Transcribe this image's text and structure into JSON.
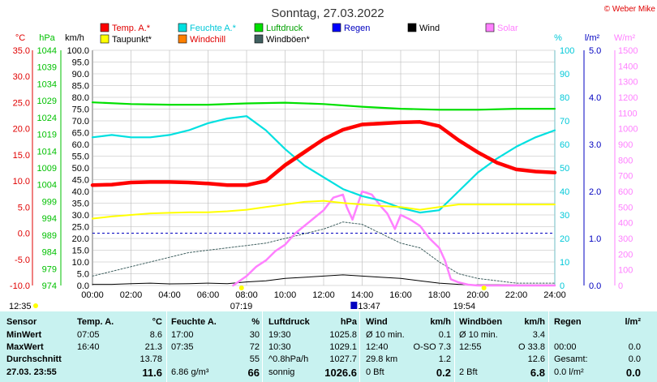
{
  "chart_data": {
    "type": "line",
    "title": "Sonntag, 27.03.2022",
    "credit": "© Weber Mike",
    "x_ticks": [
      "00:00",
      "02:00",
      "04:00",
      "06:00",
      "08:00",
      "10:00",
      "12:00",
      "14:00",
      "16:00",
      "18:00",
      "20:00",
      "22:00",
      "24:00"
    ],
    "axes": {
      "temp": {
        "unit": "°C",
        "range": [
          -10,
          35
        ],
        "ticks": [
          "35.0",
          "30.0",
          "25.0",
          "20.0",
          "15.0",
          "10.0",
          "5.0",
          "0.0",
          "-5.0",
          "-10.0"
        ],
        "color": "#e00000"
      },
      "hpa": {
        "unit": "hPa",
        "range": [
          974,
          1044
        ],
        "ticks": [
          "1044",
          "1039",
          "1034",
          "1029",
          "1024",
          "1019",
          "1014",
          "1009",
          "1004",
          "999",
          "994",
          "989",
          "984",
          "979",
          "974"
        ],
        "color": "#00c000"
      },
      "kmh": {
        "unit": "km/h",
        "range": [
          0,
          100
        ],
        "ticks": [
          "100.0",
          "95.0",
          "90.0",
          "85.0",
          "80.0",
          "75.0",
          "70.0",
          "65.0",
          "60.0",
          "55.0",
          "50.0",
          "45.0",
          "40.0",
          "35.0",
          "30.0",
          "25.0",
          "20.0",
          "15.0",
          "10.0",
          "5.0",
          "0.0"
        ],
        "color": "#000000"
      },
      "pct": {
        "unit": "%",
        "range": [
          0,
          100
        ],
        "ticks": [
          "100",
          "90",
          "80",
          "70",
          "60",
          "50",
          "40",
          "30",
          "20",
          "10",
          "0"
        ],
        "color": "#00c8d8"
      },
      "lm2": {
        "unit": "l/m²",
        "range": [
          0,
          5
        ],
        "ticks": [
          "5.0",
          "4.0",
          "3.0",
          "2.0",
          "1.0",
          "0.0"
        ],
        "color": "#0000c0"
      },
      "wm2": {
        "unit": "W/m²",
        "range": [
          0,
          1500
        ],
        "ticks": [
          "1500",
          "1400",
          "1300",
          "1200",
          "1100",
          "1000",
          "900",
          "800",
          "700",
          "600",
          "500",
          "400",
          "300",
          "200",
          "100",
          "0"
        ],
        "color": "#ff80ff"
      }
    },
    "legend": [
      {
        "label": "Temp. A.*",
        "color": "#ff0000"
      },
      {
        "label": "Feuchte A.*",
        "color": "#00e0e0"
      },
      {
        "label": "Luftdruck",
        "color": "#00e000"
      },
      {
        "label": "Regen",
        "color": "#0000ff"
      },
      {
        "label": "Wind",
        "color": "#000000"
      },
      {
        "label": "Solar",
        "color": "#ff80ff"
      },
      {
        "label": "Taupunkt*",
        "color": "#ffff00"
      },
      {
        "label": "Windchill",
        "color": "#ff8000"
      },
      {
        "label": "Windböen*",
        "color": "#406060"
      }
    ],
    "markers": {
      "sunrise": "07:19",
      "noon": "13:47",
      "sunset": "19:54",
      "now": "12:35"
    },
    "series": [
      {
        "name": "Temp. A.*",
        "axis": "temp",
        "color": "#ff0000",
        "x": [
          0,
          1,
          2,
          3,
          4,
          5,
          6,
          7,
          8,
          9,
          10,
          11,
          12,
          13,
          14,
          15,
          16,
          17,
          18,
          19,
          20,
          21,
          22,
          23,
          24
        ],
        "y": [
          9.2,
          9.3,
          9.7,
          9.8,
          9.8,
          9.7,
          9.5,
          9.2,
          9.2,
          10.0,
          13.0,
          15.5,
          18.0,
          19.8,
          20.8,
          21.0,
          21.2,
          21.3,
          20.5,
          17.8,
          15.5,
          13.5,
          12.2,
          11.8,
          11.6
        ]
      },
      {
        "name": "Windchill",
        "axis": "temp",
        "color": "#ff8000",
        "x": [
          0,
          2,
          4,
          6,
          8,
          9,
          10,
          11,
          12,
          13,
          14,
          15,
          16,
          17,
          18,
          19,
          20,
          21,
          22,
          23,
          24
        ],
        "y": [
          9.2,
          9.7,
          9.7,
          9.4,
          9.1,
          10.2,
          13.3,
          15.8,
          18.2,
          20.0,
          21.0,
          21.2,
          21.3,
          21.3,
          20.3,
          17.6,
          15.3,
          13.3,
          12.1,
          11.7,
          11.6
        ]
      },
      {
        "name": "Taupunkt*",
        "axis": "temp",
        "color": "#ffff00",
        "x": [
          0,
          1,
          2,
          3,
          4,
          5,
          6,
          7,
          8,
          9,
          10,
          11,
          12,
          13,
          14,
          15,
          16,
          17,
          18,
          19,
          20,
          21,
          22,
          23,
          24
        ],
        "y": [
          2.8,
          3.2,
          3.5,
          3.8,
          3.9,
          4.0,
          4.0,
          4.2,
          4.5,
          5.0,
          5.5,
          6.0,
          6.2,
          5.8,
          5.5,
          5.2,
          5.0,
          4.5,
          5.0,
          5.5,
          5.5,
          5.5,
          5.5,
          5.5,
          5.5
        ]
      },
      {
        "name": "Feuchte A.*",
        "axis": "pct",
        "color": "#00e0e0",
        "x": [
          0,
          1,
          2,
          3,
          4,
          5,
          6,
          7,
          8,
          9,
          10,
          11,
          12,
          13,
          14,
          15,
          16,
          17,
          18,
          19,
          20,
          21,
          22,
          23,
          24
        ],
        "y": [
          63,
          64,
          63,
          63,
          64,
          66,
          69,
          71,
          72,
          66,
          58,
          51,
          46,
          41,
          38,
          36,
          33,
          31,
          32,
          40,
          48,
          54,
          59,
          63,
          66
        ]
      },
      {
        "name": "Luftdruck",
        "axis": "hpa",
        "color": "#00e000",
        "x": [
          0,
          2,
          4,
          6,
          8,
          10,
          12,
          14,
          16,
          18,
          20,
          22,
          24
        ],
        "y": [
          1028.5,
          1028.0,
          1027.8,
          1027.8,
          1028.2,
          1028.4,
          1028.0,
          1027.2,
          1026.6,
          1026.3,
          1026.3,
          1026.6,
          1026.6
        ]
      },
      {
        "name": "Solar",
        "axis": "wm2",
        "color": "#ff80ff",
        "x": [
          7.3,
          8,
          8.5,
          9,
          9.5,
          10,
          10.5,
          11,
          11.5,
          12,
          12.5,
          13,
          13.2,
          13.5,
          14,
          14.5,
          15,
          15.3,
          15.7,
          16,
          16.5,
          17,
          17.5,
          18,
          18.3,
          18.6,
          19,
          19.5,
          20,
          21,
          24
        ],
        "y": [
          0,
          60,
          120,
          160,
          220,
          260,
          330,
          380,
          430,
          480,
          560,
          580,
          500,
          420,
          600,
          580,
          500,
          460,
          360,
          450,
          420,
          380,
          300,
          240,
          160,
          40,
          20,
          5,
          0,
          0,
          0
        ]
      },
      {
        "name": "Wind",
        "axis": "kmh",
        "color": "#000000",
        "x": [
          0,
          1,
          2,
          3,
          4,
          5,
          6,
          7,
          8,
          9,
          10,
          11,
          12,
          13,
          14,
          15,
          16,
          17,
          18,
          19,
          20,
          21,
          22,
          23,
          24
        ],
        "y": [
          0.5,
          0.5,
          0.8,
          1.0,
          0.7,
          0.8,
          1.0,
          0.8,
          1.5,
          2.0,
          3.0,
          3.5,
          4.0,
          4.5,
          4.0,
          3.5,
          3.0,
          2.0,
          1.0,
          0.5,
          0.3,
          0.3,
          0.2,
          0.2,
          0.2
        ]
      },
      {
        "name": "Windböen*",
        "axis": "kmh",
        "color": "#406060",
        "x": [
          0,
          1,
          2,
          3,
          4,
          5,
          6,
          7,
          8,
          9,
          10,
          11,
          12,
          13,
          14,
          15,
          16,
          17,
          18,
          19,
          20,
          21,
          22,
          23,
          24
        ],
        "y": [
          4,
          6,
          8,
          10,
          12,
          14,
          15,
          16,
          17,
          18,
          20,
          22,
          24,
          27,
          26,
          22,
          18,
          16,
          10,
          5,
          3,
          2,
          1,
          1,
          1
        ]
      }
    ]
  },
  "table": {
    "headers": [
      {
        "label": "Sensor",
        "unit": ""
      },
      {
        "label": "Temp. A.",
        "unit": "°C"
      },
      {
        "label": "Feuchte A.",
        "unit": "%"
      },
      {
        "label": "Luftdruck",
        "unit": "hPa"
      },
      {
        "label": "Wind",
        "unit": "km/h"
      },
      {
        "label": "Windböen",
        "unit": "km/h"
      },
      {
        "label": "Regen",
        "unit": "l/m²"
      }
    ],
    "row_labels": [
      "MinWert",
      "MaxWert",
      "Durchschnitt",
      "27.03. 23:55"
    ],
    "temp": [
      [
        "07:05",
        "8.6"
      ],
      [
        "16:40",
        "21.3"
      ],
      [
        "",
        "13.78"
      ],
      [
        "",
        "11.6"
      ]
    ],
    "humidity": [
      [
        "17:00",
        "30"
      ],
      [
        "07:35",
        "72"
      ],
      [
        "",
        "55"
      ],
      [
        "6.86 g/m³",
        "66"
      ]
    ],
    "pressure": [
      [
        "19:30",
        "1025.8"
      ],
      [
        "10:30",
        "1029.1"
      ],
      [
        "^0.8hPa/h",
        "1027.7"
      ],
      [
        "sonnig",
        "1026.6"
      ]
    ],
    "wind": [
      [
        "Ø 10 min.",
        "0.1"
      ],
      [
        "12:40",
        "O-SO 7.3"
      ],
      [
        "29.8 km",
        "1.2"
      ],
      [
        "0 Bft",
        "0.2"
      ]
    ],
    "gusts": [
      [
        "Ø 10 min.",
        "3.4"
      ],
      [
        "12:55",
        "O 33.8"
      ],
      [
        "",
        "12.6"
      ],
      [
        "2 Bft",
        "6.8"
      ]
    ],
    "rain": [
      [
        "",
        ""
      ],
      [
        "00:00",
        "0.0"
      ],
      [
        "Gesamt:",
        "0.0"
      ],
      [
        "0.0 l/m²",
        "0.0"
      ]
    ]
  }
}
